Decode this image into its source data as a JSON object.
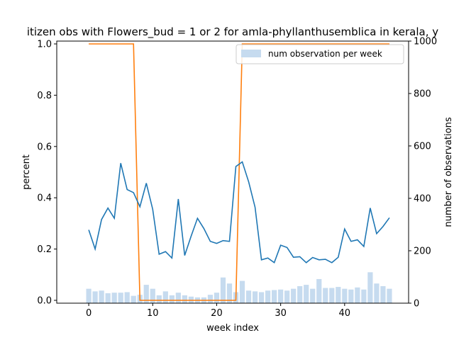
{
  "chart_data": {
    "type": "line",
    "title": "itizen obs with Flowers_bud = 1 or 2 for amla-phyllanthusemblica in kerala, y",
    "xlabel": "week index",
    "ylabel": "percent",
    "y2label": "number of observations",
    "xlim": [
      -5,
      50
    ],
    "ylim": [
      0,
      1
    ],
    "y2lim": [
      0,
      1000
    ],
    "xticks": [
      0,
      10,
      20,
      30,
      40
    ],
    "yticks": [
      "0.0",
      "0.2",
      "0.4",
      "0.6",
      "0.8",
      "1.0"
    ],
    "y2ticks": [
      "0",
      "200",
      "400",
      "600",
      "800",
      "1000"
    ],
    "legend": {
      "label": "num observation per week",
      "placement": "top-right"
    },
    "colors": {
      "percent_line": "#1f77b4",
      "binary_line": "#ff7f0e",
      "bars": "#c6dbef"
    },
    "x": [
      0,
      1,
      2,
      3,
      4,
      5,
      6,
      7,
      8,
      9,
      10,
      11,
      12,
      13,
      14,
      15,
      16,
      17,
      18,
      19,
      20,
      21,
      22,
      23,
      24,
      25,
      26,
      27,
      28,
      29,
      30,
      31,
      32,
      33,
      34,
      35,
      36,
      37,
      38,
      39,
      40,
      41,
      42,
      43,
      44,
      45,
      46,
      47
    ],
    "series": [
      {
        "values": [
          0.275,
          0.2,
          0.315,
          0.36,
          0.32,
          0.535,
          0.432,
          0.42,
          0.365,
          0.457,
          0.355,
          0.18,
          0.19,
          0.165,
          0.395,
          0.175,
          0.25,
          0.32,
          0.28,
          0.23,
          0.222,
          0.233,
          0.23,
          0.522,
          0.54,
          0.462,
          0.363,
          0.158,
          0.165,
          0.147,
          0.215,
          0.206,
          0.168,
          0.17,
          0.147,
          0.167,
          0.158,
          0.16,
          0.147,
          0.168,
          0.278,
          0.23,
          0.236,
          0.21,
          0.36,
          0.26,
          0.288,
          0.322
        ]
      },
      {
        "values": [
          1,
          1,
          1,
          1,
          1,
          1,
          1,
          1,
          0,
          0,
          0,
          0,
          0,
          0,
          0,
          0,
          0,
          0,
          0,
          0,
          0,
          0,
          0,
          0,
          1,
          1,
          1,
          1,
          1,
          1,
          1,
          1,
          1,
          1,
          1,
          1,
          1,
          1,
          1,
          1,
          1,
          1,
          1,
          1,
          1,
          1,
          1,
          1
        ]
      },
      {
        "name": "num observation per week",
        "values": [
          55,
          45,
          48,
          38,
          40,
          40,
          42,
          28,
          32,
          70,
          55,
          30,
          45,
          30,
          40,
          30,
          25,
          22,
          22,
          32,
          40,
          98,
          75,
          42,
          85,
          48,
          45,
          42,
          48,
          50,
          52,
          48,
          55,
          65,
          70,
          55,
          92,
          58,
          58,
          62,
          55,
          52,
          60,
          52,
          118,
          75,
          65,
          55
        ]
      }
    ]
  }
}
